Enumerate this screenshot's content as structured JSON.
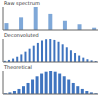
{
  "chart_data": [
    {
      "type": "bar",
      "title": "Raw spectrum",
      "categories": [
        null,
        null,
        null,
        null,
        null,
        null,
        null,
        null,
        null,
        null,
        null,
        null,
        null
      ],
      "values": [
        30,
        0,
        55,
        0,
        100,
        0,
        70,
        0,
        40,
        0,
        25,
        0,
        10
      ],
      "color": "#7fa8d8",
      "ylim": [
        0,
        100
      ],
      "tick_labels": false
    },
    {
      "type": "bar",
      "title": "Deconvoluted",
      "categories": [
        null,
        null,
        null,
        null,
        null,
        null,
        null,
        null,
        null,
        null,
        null,
        null,
        null,
        null,
        null,
        null,
        null,
        null,
        null,
        null,
        null,
        null,
        null
      ],
      "values": [
        5,
        9,
        15,
        23,
        33,
        45,
        58,
        71,
        83,
        93,
        99,
        100,
        96,
        88,
        77,
        64,
        51,
        39,
        28,
        19,
        12,
        7,
        4
      ],
      "color": "#3f74bf",
      "ylim": [
        0,
        100
      ],
      "tick_labels": false
    },
    {
      "type": "bar",
      "title": "Theoretical",
      "categories": [
        null,
        null,
        null,
        null,
        null,
        null,
        null,
        null,
        null,
        null,
        null,
        null,
        null,
        null,
        null,
        null,
        null,
        null,
        null,
        null,
        null
      ],
      "values": [
        3,
        7,
        13,
        22,
        34,
        48,
        63,
        77,
        89,
        97,
        100,
        97,
        89,
        77,
        63,
        48,
        34,
        22,
        13,
        7,
        3
      ],
      "color": "#3f74bf",
      "ylim": [
        0,
        100
      ],
      "tick_labels": false
    }
  ]
}
